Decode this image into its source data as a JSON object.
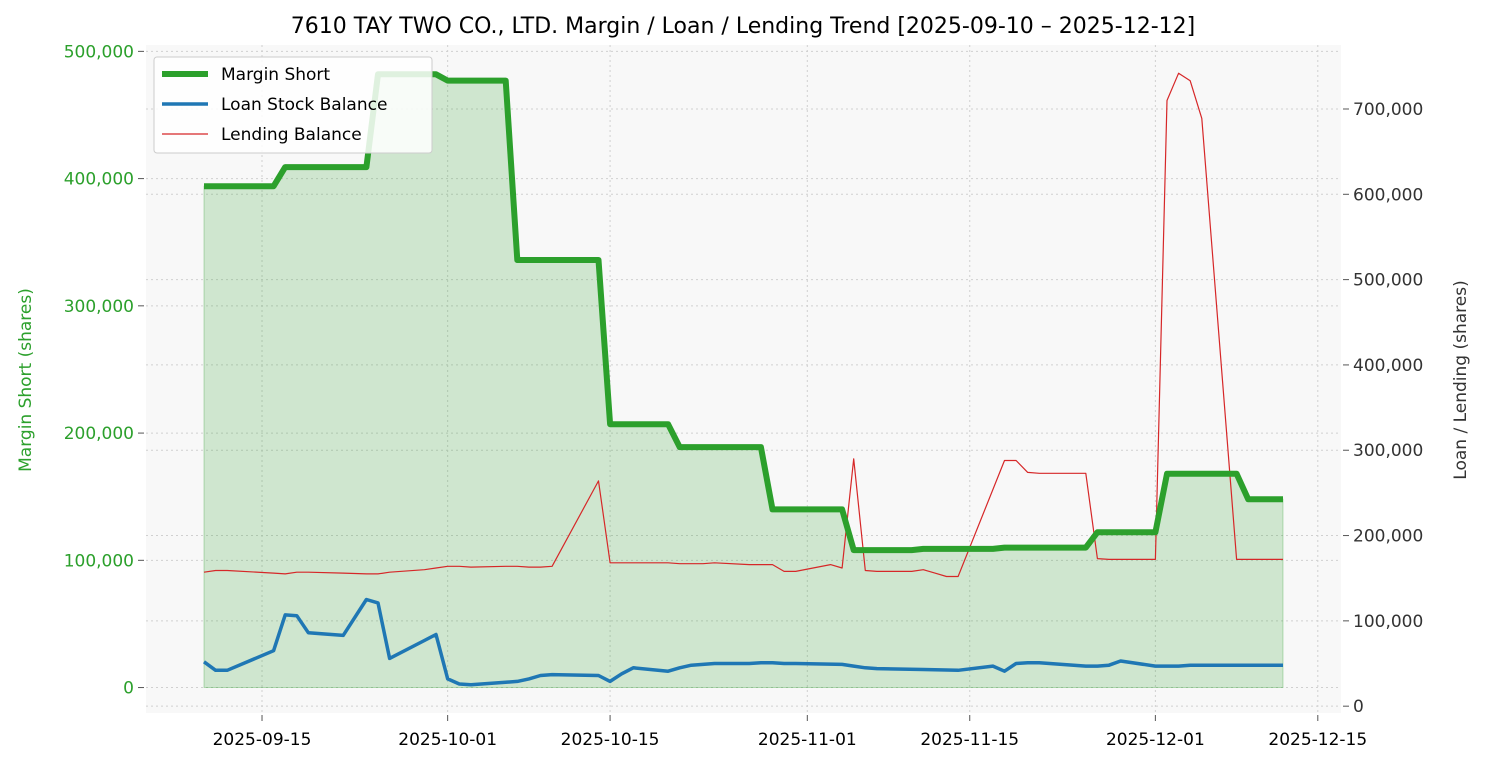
{
  "chart_data": {
    "type": "line",
    "title": "7610 TAY TWO CO., LTD. Margin / Loan / Lending Trend [2025-09-10 – 2025-12-12]",
    "ylabel_left": "Margin Short (shares)",
    "ylabel_right": "Loan / Lending (shares)",
    "xlim": [
      "2025-09-05",
      "2025-12-17"
    ],
    "ylim_left": [
      -20000,
      505000
    ],
    "ylim_right": [
      -8000,
      775000
    ],
    "x_ticks": [
      {
        "date": "2025-09-15",
        "label": "2025-09-15"
      },
      {
        "date": "2025-10-01",
        "label": "2025-10-01"
      },
      {
        "date": "2025-10-15",
        "label": "2025-10-15"
      },
      {
        "date": "2025-11-01",
        "label": "2025-11-01"
      },
      {
        "date": "2025-11-15",
        "label": "2025-11-15"
      },
      {
        "date": "2025-12-01",
        "label": "2025-12-01"
      },
      {
        "date": "2025-12-15",
        "label": "2025-12-15"
      }
    ],
    "y_ticks_left": [
      {
        "value": 0,
        "label": "0"
      },
      {
        "value": 100000,
        "label": "100,000"
      },
      {
        "value": 200000,
        "label": "200,000"
      },
      {
        "value": 300000,
        "label": "300,000"
      },
      {
        "value": 400000,
        "label": "400,000"
      },
      {
        "value": 500000,
        "label": "500,000"
      }
    ],
    "y_ticks_right": [
      {
        "value": 0,
        "label": "0"
      },
      {
        "value": 100000,
        "label": "100,000"
      },
      {
        "value": 200000,
        "label": "200,000"
      },
      {
        "value": 300000,
        "label": "300,000"
      },
      {
        "value": 400000,
        "label": "400,000"
      },
      {
        "value": 500000,
        "label": "500,000"
      },
      {
        "value": 600000,
        "label": "600,000"
      },
      {
        "value": 700000,
        "label": "700,000"
      }
    ],
    "grid": true,
    "legend_position": "top-left",
    "series": [
      {
        "name": "Margin Short",
        "axis": "left",
        "color": "#2ca02c",
        "fill": true,
        "points": [
          [
            "2025-09-10",
            394000
          ],
          [
            "2025-09-11",
            394000
          ],
          [
            "2025-09-12",
            394000
          ],
          [
            "2025-09-16",
            394000
          ],
          [
            "2025-09-17",
            409000
          ],
          [
            "2025-09-18",
            409000
          ],
          [
            "2025-09-19",
            409000
          ],
          [
            "2025-09-22",
            409000
          ],
          [
            "2025-09-24",
            409000
          ],
          [
            "2025-09-25",
            482000
          ],
          [
            "2025-09-26",
            482000
          ],
          [
            "2025-09-27",
            482000
          ],
          [
            "2025-09-30",
            482000
          ],
          [
            "2025-10-01",
            477000
          ],
          [
            "2025-10-02",
            477000
          ],
          [
            "2025-10-03",
            477000
          ],
          [
            "2025-10-05",
            477000
          ],
          [
            "2025-10-06",
            477000
          ],
          [
            "2025-10-07",
            336000
          ],
          [
            "2025-10-08",
            336000
          ],
          [
            "2025-10-09",
            336000
          ],
          [
            "2025-10-10",
            336000
          ],
          [
            "2025-10-14",
            336000
          ],
          [
            "2025-10-15",
            207000
          ],
          [
            "2025-10-16",
            207000
          ],
          [
            "2025-10-17",
            207000
          ],
          [
            "2025-10-20",
            207000
          ],
          [
            "2025-10-21",
            189000
          ],
          [
            "2025-10-22",
            189000
          ],
          [
            "2025-10-23",
            189000
          ],
          [
            "2025-10-24",
            189000
          ],
          [
            "2025-10-27",
            189000
          ],
          [
            "2025-10-28",
            189000
          ],
          [
            "2025-10-29",
            140000
          ],
          [
            "2025-10-30",
            140000
          ],
          [
            "2025-10-31",
            140000
          ],
          [
            "2025-11-03",
            140000
          ],
          [
            "2025-11-04",
            140000
          ],
          [
            "2025-11-05",
            108000
          ],
          [
            "2025-11-06",
            108000
          ],
          [
            "2025-11-07",
            108000
          ],
          [
            "2025-11-10",
            108000
          ],
          [
            "2025-11-11",
            109000
          ],
          [
            "2025-11-12",
            109000
          ],
          [
            "2025-11-13",
            109000
          ],
          [
            "2025-11-14",
            109000
          ],
          [
            "2025-11-17",
            109000
          ],
          [
            "2025-11-18",
            110000
          ],
          [
            "2025-11-19",
            110000
          ],
          [
            "2025-11-20",
            110000
          ],
          [
            "2025-11-21",
            110000
          ],
          [
            "2025-11-25",
            110000
          ],
          [
            "2025-11-26",
            122000
          ],
          [
            "2025-11-27",
            122000
          ],
          [
            "2025-11-28",
            122000
          ],
          [
            "2025-12-01",
            122000
          ],
          [
            "2025-12-02",
            168000
          ],
          [
            "2025-12-03",
            168000
          ],
          [
            "2025-12-04",
            168000
          ],
          [
            "2025-12-05",
            168000
          ],
          [
            "2025-12-08",
            168000
          ],
          [
            "2025-12-09",
            148000
          ],
          [
            "2025-12-10",
            148000
          ],
          [
            "2025-12-11",
            148000
          ],
          [
            "2025-12-12",
            148000
          ]
        ]
      },
      {
        "name": "Loan Stock Balance",
        "axis": "right",
        "color": "#1f77b4",
        "points": [
          [
            "2025-09-10",
            52000
          ],
          [
            "2025-09-11",
            42000
          ],
          [
            "2025-09-12",
            42000
          ],
          [
            "2025-09-16",
            65000
          ],
          [
            "2025-09-17",
            107000
          ],
          [
            "2025-09-18",
            106000
          ],
          [
            "2025-09-19",
            86000
          ],
          [
            "2025-09-22",
            83000
          ],
          [
            "2025-09-24",
            125000
          ],
          [
            "2025-09-25",
            121000
          ],
          [
            "2025-09-26",
            56000
          ],
          [
            "2025-09-29",
            77000
          ],
          [
            "2025-09-30",
            84000
          ],
          [
            "2025-10-01",
            32000
          ],
          [
            "2025-10-02",
            26000
          ],
          [
            "2025-10-03",
            25000
          ],
          [
            "2025-10-06",
            28000
          ],
          [
            "2025-10-07",
            29000
          ],
          [
            "2025-10-08",
            32000
          ],
          [
            "2025-10-09",
            36000
          ],
          [
            "2025-10-10",
            37000
          ],
          [
            "2025-10-14",
            36000
          ],
          [
            "2025-10-15",
            29000
          ],
          [
            "2025-10-16",
            38000
          ],
          [
            "2025-10-17",
            45000
          ],
          [
            "2025-10-20",
            41000
          ],
          [
            "2025-10-21",
            45000
          ],
          [
            "2025-10-22",
            48000
          ],
          [
            "2025-10-23",
            49000
          ],
          [
            "2025-10-24",
            50000
          ],
          [
            "2025-10-27",
            50000
          ],
          [
            "2025-10-28",
            51000
          ],
          [
            "2025-10-29",
            51000
          ],
          [
            "2025-10-30",
            50000
          ],
          [
            "2025-10-31",
            50000
          ],
          [
            "2025-11-04",
            49000
          ],
          [
            "2025-11-05",
            47000
          ],
          [
            "2025-11-06",
            45000
          ],
          [
            "2025-11-07",
            44000
          ],
          [
            "2025-11-11",
            43000
          ],
          [
            "2025-11-14",
            42000
          ],
          [
            "2025-11-17",
            47000
          ],
          [
            "2025-11-18",
            41000
          ],
          [
            "2025-11-19",
            50000
          ],
          [
            "2025-11-20",
            51000
          ],
          [
            "2025-11-21",
            51000
          ],
          [
            "2025-11-25",
            47000
          ],
          [
            "2025-11-26",
            47000
          ],
          [
            "2025-11-27",
            48000
          ],
          [
            "2025-11-28",
            53000
          ],
          [
            "2025-12-01",
            47000
          ],
          [
            "2025-12-02",
            47000
          ],
          [
            "2025-12-03",
            47000
          ],
          [
            "2025-12-04",
            48000
          ],
          [
            "2025-12-05",
            48000
          ],
          [
            "2025-12-08",
            48000
          ],
          [
            "2025-12-09",
            48000
          ],
          [
            "2025-12-10",
            48000
          ],
          [
            "2025-12-11",
            48000
          ],
          [
            "2025-12-12",
            48000
          ]
        ]
      },
      {
        "name": "Lending Balance",
        "axis": "right",
        "color": "#d62728",
        "points": [
          [
            "2025-09-10",
            157000
          ],
          [
            "2025-09-11",
            159000
          ],
          [
            "2025-09-12",
            159000
          ],
          [
            "2025-09-16",
            156000
          ],
          [
            "2025-09-17",
            155000
          ],
          [
            "2025-09-18",
            157000
          ],
          [
            "2025-09-19",
            157000
          ],
          [
            "2025-09-22",
            156000
          ],
          [
            "2025-09-24",
            155000
          ],
          [
            "2025-09-25",
            155000
          ],
          [
            "2025-09-26",
            157000
          ],
          [
            "2025-09-29",
            160000
          ],
          [
            "2025-09-30",
            162000
          ],
          [
            "2025-10-01",
            164000
          ],
          [
            "2025-10-02",
            164000
          ],
          [
            "2025-10-03",
            163000
          ],
          [
            "2025-10-06",
            164000
          ],
          [
            "2025-10-07",
            164000
          ],
          [
            "2025-10-08",
            163000
          ],
          [
            "2025-10-09",
            163000
          ],
          [
            "2025-10-10",
            164000
          ],
          [
            "2025-10-14",
            264000
          ],
          [
            "2025-10-15",
            168000
          ],
          [
            "2025-10-16",
            168000
          ],
          [
            "2025-10-20",
            168000
          ],
          [
            "2025-10-21",
            167000
          ],
          [
            "2025-10-23",
            167000
          ],
          [
            "2025-10-24",
            168000
          ],
          [
            "2025-10-27",
            166000
          ],
          [
            "2025-10-28",
            166000
          ],
          [
            "2025-10-29",
            166000
          ],
          [
            "2025-10-30",
            158000
          ],
          [
            "2025-10-31",
            158000
          ],
          [
            "2025-11-03",
            166000
          ],
          [
            "2025-11-04",
            162000
          ],
          [
            "2025-11-05",
            290000
          ],
          [
            "2025-11-06",
            159000
          ],
          [
            "2025-11-07",
            158000
          ],
          [
            "2025-11-10",
            158000
          ],
          [
            "2025-11-11",
            160000
          ],
          [
            "2025-11-12",
            156000
          ],
          [
            "2025-11-13",
            152000
          ],
          [
            "2025-11-14",
            152000
          ],
          [
            "2025-11-18",
            288000
          ],
          [
            "2025-11-19",
            288000
          ],
          [
            "2025-11-20",
            274000
          ],
          [
            "2025-11-21",
            273000
          ],
          [
            "2025-11-25",
            273000
          ],
          [
            "2025-11-26",
            173000
          ],
          [
            "2025-11-27",
            172000
          ],
          [
            "2025-11-28",
            172000
          ],
          [
            "2025-12-01",
            172000
          ],
          [
            "2025-12-02",
            710000
          ],
          [
            "2025-12-03",
            742000
          ],
          [
            "2025-12-04",
            733000
          ],
          [
            "2025-12-05",
            689000
          ],
          [
            "2025-12-08",
            172000
          ],
          [
            "2025-12-09",
            172000
          ],
          [
            "2025-12-10",
            172000
          ],
          [
            "2025-12-11",
            172000
          ],
          [
            "2025-12-12",
            172000
          ]
        ]
      }
    ]
  }
}
